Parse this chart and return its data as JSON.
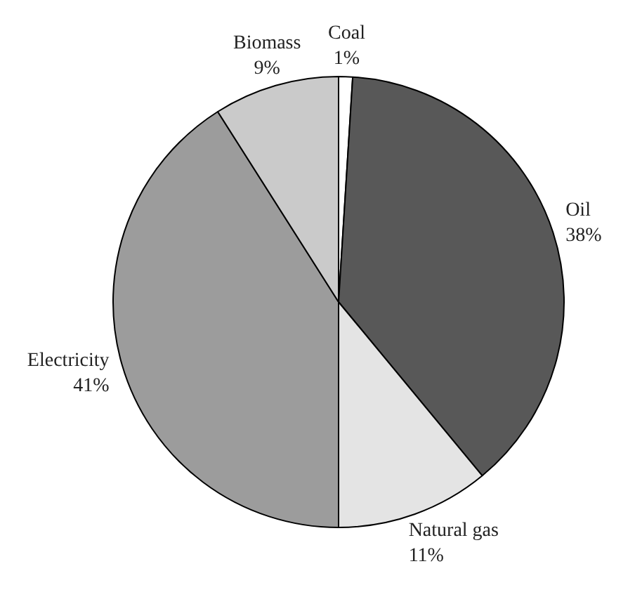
{
  "chart_data": {
    "type": "pie",
    "categories": [
      "Coal",
      "Oil",
      "Natural gas",
      "Electricity",
      "Biomass"
    ],
    "values": [
      1,
      38,
      11,
      41,
      9
    ],
    "colors": [
      "#ffffff",
      "#585858",
      "#e4e4e4",
      "#9c9c9c",
      "#cacaca"
    ],
    "value_labels": [
      "1%",
      "38%",
      "11%",
      "41%",
      "9%"
    ]
  }
}
